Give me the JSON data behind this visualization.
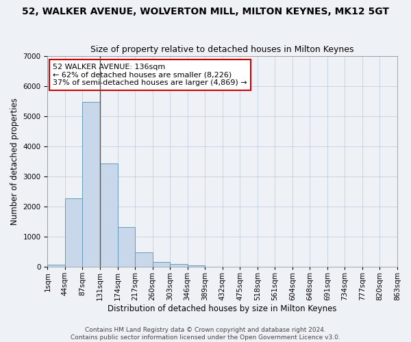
{
  "title": "52, WALKER AVENUE, WOLVERTON MILL, MILTON KEYNES, MK12 5GT",
  "subtitle": "Size of property relative to detached houses in Milton Keynes",
  "xlabel": "Distribution of detached houses by size in Milton Keynes",
  "ylabel": "Number of detached properties",
  "bar_values": [
    75,
    2280,
    5480,
    3430,
    1310,
    470,
    155,
    80,
    45,
    0,
    0,
    0,
    0,
    0,
    0,
    0,
    0,
    0,
    0,
    0
  ],
  "bar_color": "#c8d8ea",
  "bar_edge_color": "#6699bb",
  "tick_labels": [
    "1sqm",
    "44sqm",
    "87sqm",
    "131sqm",
    "174sqm",
    "217sqm",
    "260sqm",
    "303sqm",
    "346sqm",
    "389sqm",
    "432sqm",
    "475sqm",
    "518sqm",
    "561sqm",
    "604sqm",
    "648sqm",
    "691sqm",
    "734sqm",
    "777sqm",
    "820sqm",
    "863sqm"
  ],
  "n_bins": 20,
  "ylim": [
    0,
    7000
  ],
  "yticks": [
    0,
    1000,
    2000,
    3000,
    4000,
    5000,
    6000,
    7000
  ],
  "vline_bin": 3,
  "vline_color": "#555555",
  "annotation_text": "52 WALKER AVENUE: 136sqm\n← 62% of detached houses are smaller (8,226)\n37% of semi-detached houses are larger (4,869) →",
  "annotation_box_color": "#ffffff",
  "annotation_box_edge": "#cc0000",
  "background_color": "#eef2f7",
  "grid_color": "#b0bdd0",
  "footer_text": "Contains HM Land Registry data © Crown copyright and database right 2024.\nContains public sector information licensed under the Open Government Licence v3.0.",
  "title_fontsize": 10,
  "subtitle_fontsize": 9,
  "axis_label_fontsize": 8.5,
  "tick_fontsize": 7.5,
  "annotation_fontsize": 8,
  "footer_fontsize": 6.5
}
